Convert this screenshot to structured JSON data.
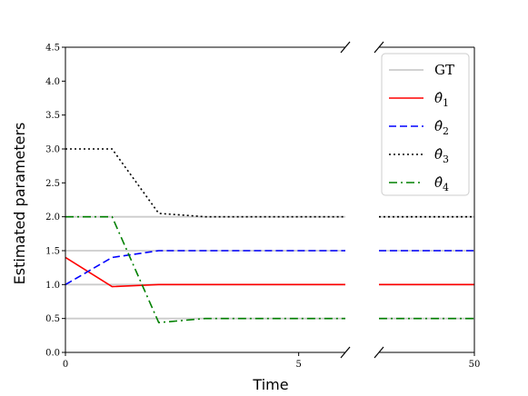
{
  "chart_data": {
    "type": "line",
    "xlabel": "Time",
    "ylabel": "Estimated parameters",
    "ylim": [
      0,
      4.5
    ],
    "yticks": [
      0.0,
      0.5,
      1.0,
      1.5,
      2.0,
      2.5,
      3.0,
      3.5,
      4.0,
      4.5
    ],
    "ytick_labels": [
      "0.0",
      "0.5",
      "1.0",
      "1.5",
      "2.0",
      "2.5",
      "3.0",
      "3.5",
      "4.0",
      "4.5"
    ],
    "broken_x_axis": true,
    "left_panel": {
      "xlim": [
        0,
        6
      ],
      "xticks": [
        0,
        5
      ],
      "xtick_labels": [
        "0",
        "5"
      ]
    },
    "right_panel": {
      "xlim": [
        48,
        50
      ],
      "xticks": [
        50
      ],
      "xtick_labels": [
        "50"
      ]
    },
    "grid": false,
    "legend_position": "upper right",
    "ground_truth": {
      "name": "GT",
      "values": [
        0.5,
        1.0,
        1.5,
        2.0
      ],
      "color": "#cccccc",
      "style": "solid"
    },
    "series": [
      {
        "name": "θ̂1",
        "color": "#ff0000",
        "style": "solid",
        "x": [
          0,
          1,
          2,
          3,
          4,
          5,
          6,
          48,
          50
        ],
        "y": [
          1.4,
          0.97,
          1.0,
          1.0,
          1.0,
          1.0,
          1.0,
          1.0,
          1.0
        ]
      },
      {
        "name": "θ̂2",
        "color": "#0000ff",
        "style": "dashed",
        "x": [
          0,
          1,
          2,
          3,
          4,
          5,
          6,
          48,
          50
        ],
        "y": [
          1.0,
          1.4,
          1.5,
          1.5,
          1.5,
          1.5,
          1.5,
          1.5,
          1.5
        ]
      },
      {
        "name": "θ̂3",
        "color": "#000000",
        "style": "dotted",
        "x": [
          0,
          1,
          2,
          3,
          4,
          5,
          6,
          48,
          50
        ],
        "y": [
          3.0,
          3.0,
          2.05,
          2.0,
          2.0,
          2.0,
          2.0,
          2.0,
          2.0
        ]
      },
      {
        "name": "θ̂4",
        "color": "#008000",
        "style": "dashdot",
        "x": [
          0,
          1,
          2,
          3,
          4,
          5,
          6,
          48,
          50
        ],
        "y": [
          2.0,
          2.0,
          0.44,
          0.5,
          0.5,
          0.5,
          0.5,
          0.5,
          0.5
        ]
      }
    ]
  }
}
